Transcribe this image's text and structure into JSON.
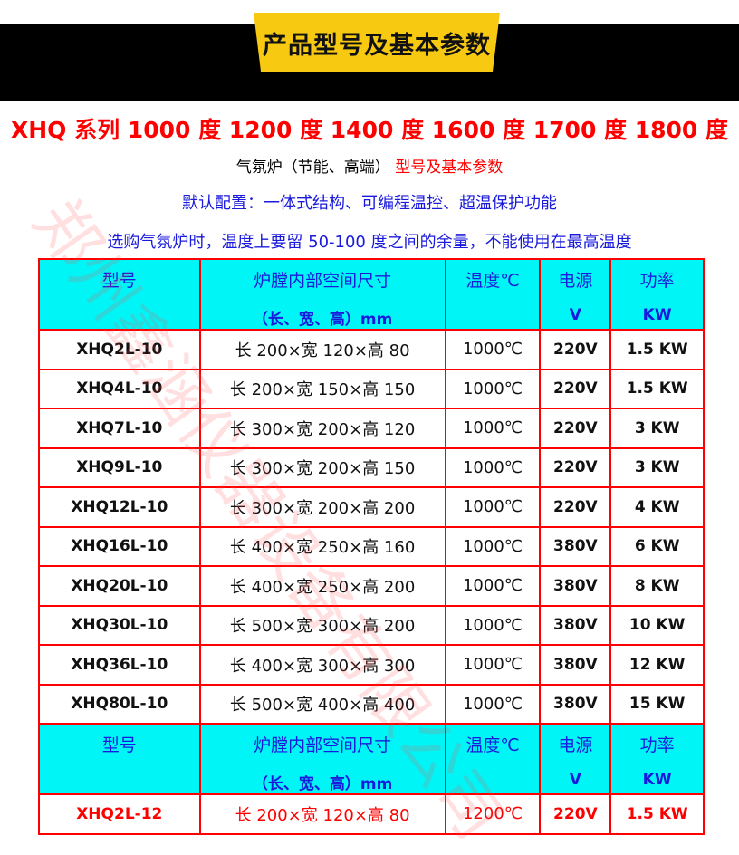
{
  "banner": {
    "title": "产品型号及基本参数"
  },
  "heading": {
    "series": "XHQ 系列 1000 度 1200 度 1400 度 1600 度 1700 度 1800 度",
    "subtitle_black": "气氛炉（节能、高端）",
    "subtitle_red": "型号及基本参数",
    "default_config": "默认配置：一体式结构、可编程温控、超温保护功能",
    "note": "选购气氛炉时，温度上要留 50-100 度之间的余量，不能使用在最高温度"
  },
  "table": {
    "header": {
      "model": "型号",
      "size": "炉膛内部空间尺寸",
      "size_unit": "（长、宽、高）mm",
      "temp": "温度℃",
      "power_source": "电源",
      "power_source_unit": "V",
      "power": "功率",
      "power_unit": "KW"
    },
    "rows": [
      [
        "XHQ2L-10",
        "长 200×宽 120×高 80",
        "1000℃",
        "220V",
        "1.5 KW"
      ],
      [
        "XHQ4L-10",
        "长 200×宽 150×高 150",
        "1000℃",
        "220V",
        "1.5 KW"
      ],
      [
        "XHQ7L-10",
        "长 300×宽 200×高 120",
        "1000℃",
        "220V",
        "3 KW"
      ],
      [
        "XHQ9L-10",
        "长 300×宽 200×高 150",
        "1000℃",
        "220V",
        "3 KW"
      ],
      [
        "XHQ12L-10",
        "长 300×宽 200×高 200",
        "1000℃",
        "220V",
        "4 KW"
      ],
      [
        "XHQ16L-10",
        "长 400×宽 250×高 160",
        "1000℃",
        "380V",
        "6 KW"
      ],
      [
        "XHQ20L-10",
        "长 400×宽 250×高 200",
        "1000℃",
        "380V",
        "8 KW"
      ],
      [
        "XHQ30L-10",
        "长 500×宽 300×高 200",
        "1000℃",
        "380V",
        "10 KW"
      ],
      [
        "XHQ36L-10",
        "长 400×宽 300×高 300",
        "1000℃",
        "380V",
        "12 KW"
      ],
      [
        "XHQ80L-10",
        "长 500×宽 400×高 400",
        "1000℃",
        "380V",
        "15 KW"
      ]
    ],
    "rows2": [
      [
        "XHQ2L-12",
        "长 200×宽 120×高 80",
        "1200℃",
        "220V",
        "1.5 KW"
      ]
    ]
  },
  "watermark": "郑州鑫涵仪器设备有限公司"
}
